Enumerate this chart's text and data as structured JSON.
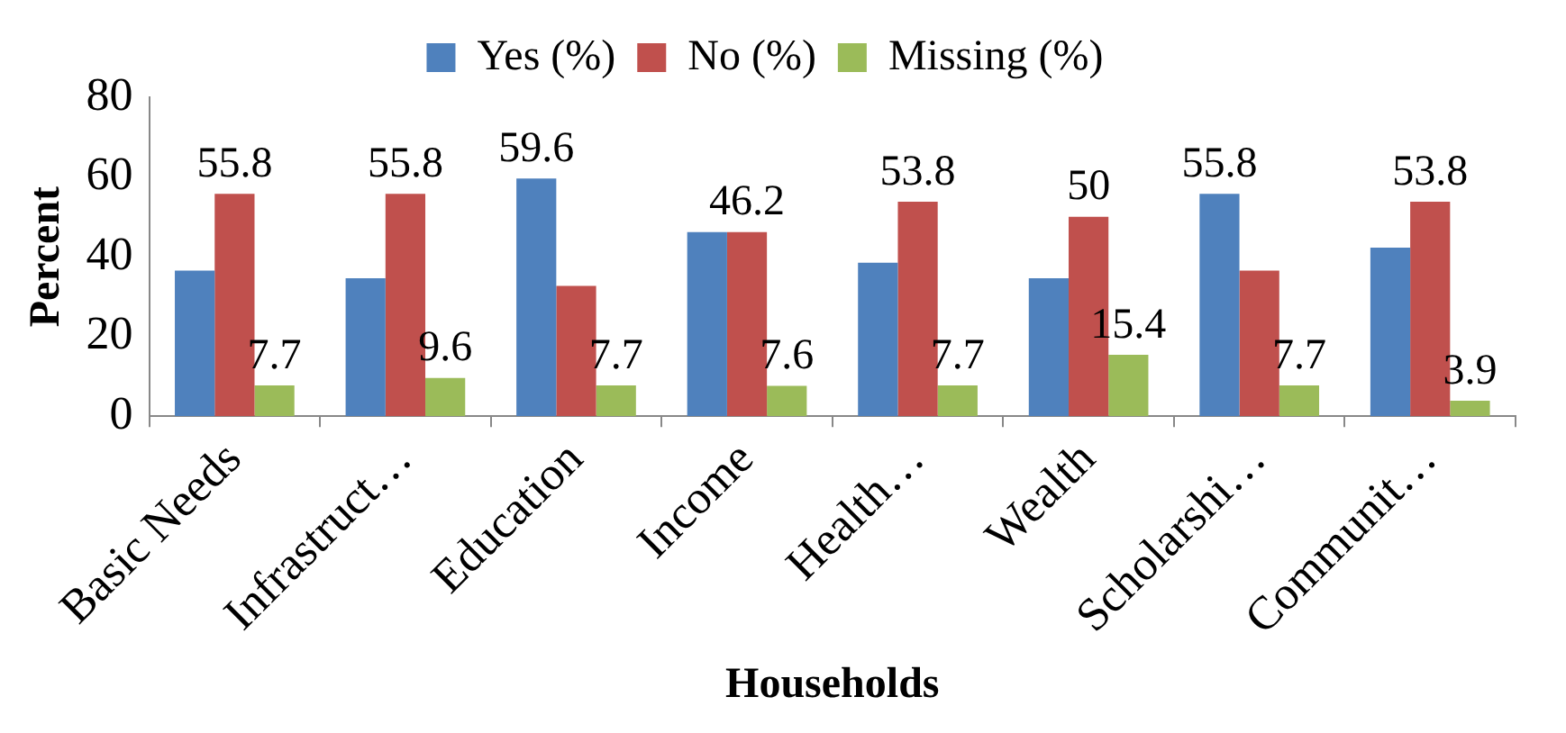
{
  "chart_data": {
    "type": "bar",
    "xlabel": "Households",
    "ylabel": "Percent",
    "categories": [
      "Basic Needs",
      "Infrastruct…",
      "Education",
      "Income",
      "Health…",
      "Wealth",
      "Scholarshi…",
      "Communit…"
    ],
    "series": [
      {
        "name": "Yes (%)",
        "color": "#4f81bd",
        "values": [
          36.5,
          34.6,
          59.6,
          46.2,
          38.5,
          34.6,
          55.8,
          42.3
        ],
        "value_labels": [
          null,
          null,
          "59.6",
          null,
          null,
          null,
          "55.8",
          null
        ]
      },
      {
        "name": "No (%)",
        "color": "#c0504d",
        "values": [
          55.8,
          55.8,
          32.7,
          46.2,
          53.8,
          50,
          36.5,
          53.8
        ],
        "value_labels": [
          "55.8",
          "55.8",
          null,
          "46.2",
          "53.8",
          "50",
          null,
          "53.8"
        ]
      },
      {
        "name": "Missing (%)",
        "color": "#9bbb59",
        "values": [
          7.7,
          9.6,
          7.7,
          7.6,
          7.7,
          15.4,
          7.7,
          3.9
        ],
        "value_labels": [
          "7.7",
          "9.6",
          "7.7",
          "7.6",
          "7.7",
          "15.4",
          "7.7",
          "3.9"
        ]
      }
    ],
    "ylim": [
      0,
      80
    ],
    "yticks": [
      0,
      20,
      40,
      60,
      80
    ],
    "grid": false,
    "legend": "top"
  }
}
